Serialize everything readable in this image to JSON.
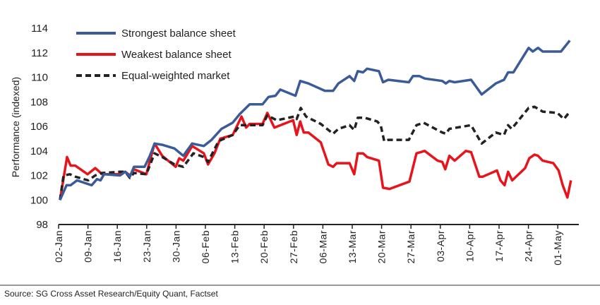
{
  "chart_data": {
    "type": "line",
    "title": "",
    "xlabel": "",
    "ylabel": "Performance (indexed)",
    "x_units": "trading days since 02-Jan",
    "ylim": [
      98,
      114
    ],
    "yticks": [
      98,
      100,
      102,
      104,
      106,
      108,
      110,
      112,
      114
    ],
    "xticks": [
      {
        "x": 0,
        "label": "02-Jan"
      },
      {
        "x": 5,
        "label": "09-Jan"
      },
      {
        "x": 10,
        "label": "16-Jan"
      },
      {
        "x": 15,
        "label": "23-Jan"
      },
      {
        "x": 20,
        "label": "30-Jan"
      },
      {
        "x": 25,
        "label": "06-Feb"
      },
      {
        "x": 30,
        "label": "13-Feb"
      },
      {
        "x": 35,
        "label": "20-Feb"
      },
      {
        "x": 40,
        "label": "27-Feb"
      },
      {
        "x": 45,
        "label": "06-Mar"
      },
      {
        "x": 50,
        "label": "13-Mar"
      },
      {
        "x": 55,
        "label": "20-Mar"
      },
      {
        "x": 60,
        "label": "27-Mar"
      },
      {
        "x": 65,
        "label": "03-Apr"
      },
      {
        "x": 70,
        "label": "10-Apr"
      },
      {
        "x": 75,
        "label": "17-Apr"
      },
      {
        "x": 80,
        "label": "24-Apr"
      },
      {
        "x": 85,
        "label": "01-May"
      }
    ],
    "grid": false,
    "legend_position": "top-left",
    "series": [
      {
        "name": "Strongest balance sheet",
        "color": "#3a5a98",
        "dash": false,
        "points": [
          [
            0,
            100.0
          ],
          [
            1.1,
            101.2
          ],
          [
            1.8,
            101.2
          ],
          [
            2.9,
            101.6
          ],
          [
            5.4,
            101.2
          ],
          [
            6.3,
            101.7
          ],
          [
            6.9,
            101.6
          ],
          [
            7.5,
            102.1
          ],
          [
            10.2,
            102.0
          ],
          [
            11.1,
            102.3
          ],
          [
            11.9,
            101.9
          ],
          [
            12.6,
            102.7
          ],
          [
            14.4,
            102.7
          ],
          [
            15.3,
            103.6
          ],
          [
            16.1,
            104.6
          ],
          [
            17.4,
            104.5
          ],
          [
            19.5,
            104.2
          ],
          [
            21.0,
            103.6
          ],
          [
            22.5,
            104.6
          ],
          [
            24.5,
            104.4
          ],
          [
            25.8,
            104.9
          ],
          [
            27.5,
            105.8
          ],
          [
            29.4,
            106.3
          ],
          [
            30.6,
            107.0
          ],
          [
            32.3,
            107.8
          ],
          [
            34.5,
            107.8
          ],
          [
            35.5,
            108.4
          ],
          [
            36.7,
            108.5
          ],
          [
            37.5,
            109.0
          ],
          [
            40.1,
            108.5
          ],
          [
            40.9,
            109.7
          ],
          [
            42.3,
            109.5
          ],
          [
            45.1,
            108.9
          ],
          [
            46.5,
            108.9
          ],
          [
            47.4,
            109.5
          ],
          [
            49.3,
            110.1
          ],
          [
            50.1,
            109.7
          ],
          [
            50.7,
            110.5
          ],
          [
            51.6,
            110.4
          ],
          [
            52.3,
            110.7
          ],
          [
            54.3,
            110.5
          ],
          [
            55.0,
            109.6
          ],
          [
            55.9,
            109.8
          ],
          [
            59.4,
            109.6
          ],
          [
            60.1,
            110.1
          ],
          [
            61.2,
            110.1
          ],
          [
            62.1,
            109.9
          ],
          [
            65.1,
            109.7
          ],
          [
            65.7,
            109.5
          ],
          [
            66.3,
            109.7
          ],
          [
            67.2,
            109.6
          ],
          [
            70.0,
            109.8
          ],
          [
            71.8,
            108.6
          ],
          [
            74.2,
            109.5
          ],
          [
            75.6,
            109.8
          ],
          [
            76.3,
            110.4
          ],
          [
            77.2,
            110.4
          ],
          [
            79.8,
            112.4
          ],
          [
            80.5,
            112.1
          ],
          [
            81.4,
            112.4
          ],
          [
            82.2,
            112.1
          ],
          [
            85.3,
            112.1
          ],
          [
            86.8,
            113.0
          ]
        ]
      },
      {
        "name": "Weakest balance sheet",
        "color": "#e8141b",
        "dash": false,
        "points": [
          [
            0,
            100.0
          ],
          [
            1.2,
            103.5
          ],
          [
            1.8,
            102.8
          ],
          [
            2.6,
            102.8
          ],
          [
            4.7,
            102.1
          ],
          [
            6.0,
            102.6
          ],
          [
            7.2,
            102.1
          ],
          [
            10.2,
            102.1
          ],
          [
            11.1,
            102.3
          ],
          [
            11.9,
            102.0
          ],
          [
            12.6,
            102.5
          ],
          [
            14.7,
            102.1
          ],
          [
            16.1,
            104.6
          ],
          [
            17.4,
            103.6
          ],
          [
            19.7,
            102.7
          ],
          [
            20.3,
            103.4
          ],
          [
            21.0,
            103.2
          ],
          [
            22.5,
            104.4
          ],
          [
            24.5,
            103.8
          ],
          [
            25.2,
            102.9
          ],
          [
            26.3,
            103.8
          ],
          [
            27.3,
            105.0
          ],
          [
            29.4,
            105.3
          ],
          [
            30.9,
            106.8
          ],
          [
            31.7,
            105.9
          ],
          [
            32.3,
            106.2
          ],
          [
            34.5,
            106.2
          ],
          [
            35.3,
            107.1
          ],
          [
            36.5,
            105.9
          ],
          [
            39.7,
            106.5
          ],
          [
            40.3,
            105.3
          ],
          [
            40.9,
            106.4
          ],
          [
            41.5,
            105.5
          ],
          [
            42.3,
            105.5
          ],
          [
            44.4,
            104.7
          ],
          [
            45.7,
            102.9
          ],
          [
            46.5,
            102.7
          ],
          [
            47.1,
            103.0
          ],
          [
            49.3,
            103.0
          ],
          [
            50.1,
            102.1
          ],
          [
            50.7,
            103.8
          ],
          [
            51.6,
            103.8
          ],
          [
            52.3,
            103.5
          ],
          [
            54.3,
            103.2
          ],
          [
            55.0,
            101.0
          ],
          [
            56.1,
            100.9
          ],
          [
            59.5,
            101.5
          ],
          [
            60.7,
            103.8
          ],
          [
            62.1,
            104.0
          ],
          [
            64.3,
            103.2
          ],
          [
            65.1,
            103.1
          ],
          [
            65.6,
            102.5
          ],
          [
            66.3,
            103.6
          ],
          [
            67.2,
            103.2
          ],
          [
            69.1,
            104.0
          ],
          [
            70.0,
            103.9
          ],
          [
            71.4,
            101.9
          ],
          [
            72.0,
            101.9
          ],
          [
            74.4,
            102.4
          ],
          [
            75.0,
            101.6
          ],
          [
            75.7,
            101.2
          ],
          [
            76.3,
            102.3
          ],
          [
            77.0,
            101.6
          ],
          [
            79.2,
            102.6
          ],
          [
            79.9,
            103.4
          ],
          [
            80.8,
            103.7
          ],
          [
            81.4,
            103.6
          ],
          [
            82.2,
            103.2
          ],
          [
            84.0,
            103.0
          ],
          [
            84.9,
            102.4
          ],
          [
            85.6,
            101.2
          ],
          [
            86.4,
            100.2
          ],
          [
            87.0,
            101.6
          ]
        ]
      },
      {
        "name": "Equal-weighted market",
        "color": "#222222",
        "dash": true,
        "points": [
          [
            0,
            100.0
          ],
          [
            0.6,
            102.0
          ],
          [
            1.7,
            102.1
          ],
          [
            2.6,
            101.9
          ],
          [
            4.8,
            101.6
          ],
          [
            6.0,
            102.0
          ],
          [
            7.2,
            102.2
          ],
          [
            10.2,
            102.3
          ],
          [
            11.1,
            102.3
          ],
          [
            11.9,
            101.8
          ],
          [
            12.6,
            102.2
          ],
          [
            14.7,
            102.1
          ],
          [
            16.1,
            103.8
          ],
          [
            17.4,
            103.5
          ],
          [
            19.5,
            102.9
          ],
          [
            21.0,
            102.7
          ],
          [
            22.7,
            103.8
          ],
          [
            24.5,
            103.5
          ],
          [
            25.2,
            103.1
          ],
          [
            27.0,
            104.8
          ],
          [
            29.4,
            105.3
          ],
          [
            30.6,
            106.1
          ],
          [
            34.5,
            106.1
          ],
          [
            35.3,
            106.9
          ],
          [
            36.9,
            106.5
          ],
          [
            39.9,
            106.8
          ],
          [
            40.3,
            106.6
          ],
          [
            41.0,
            107.5
          ],
          [
            41.9,
            106.8
          ],
          [
            42.3,
            106.7
          ],
          [
            44.4,
            106.2
          ],
          [
            46.5,
            105.4
          ],
          [
            47.4,
            105.8
          ],
          [
            49.3,
            106.1
          ],
          [
            50.1,
            105.7
          ],
          [
            50.7,
            106.7
          ],
          [
            51.9,
            106.7
          ],
          [
            54.0,
            106.4
          ],
          [
            54.6,
            106.1
          ],
          [
            55.2,
            104.8
          ],
          [
            55.9,
            104.9
          ],
          [
            59.4,
            104.9
          ],
          [
            60.7,
            106.1
          ],
          [
            61.9,
            106.3
          ],
          [
            65.1,
            105.5
          ],
          [
            65.7,
            105.4
          ],
          [
            66.3,
            105.8
          ],
          [
            70.0,
            106.1
          ],
          [
            71.8,
            104.6
          ],
          [
            74.2,
            105.5
          ],
          [
            75.6,
            105.3
          ],
          [
            76.3,
            106.1
          ],
          [
            76.9,
            105.8
          ],
          [
            79.8,
            107.5
          ],
          [
            80.8,
            107.6
          ],
          [
            82.2,
            107.2
          ],
          [
            84.7,
            107.1
          ],
          [
            85.8,
            106.6
          ],
          [
            86.8,
            107.2
          ]
        ]
      }
    ]
  },
  "source": "Source: SG Cross Asset Research/Equity Quant, Factset"
}
